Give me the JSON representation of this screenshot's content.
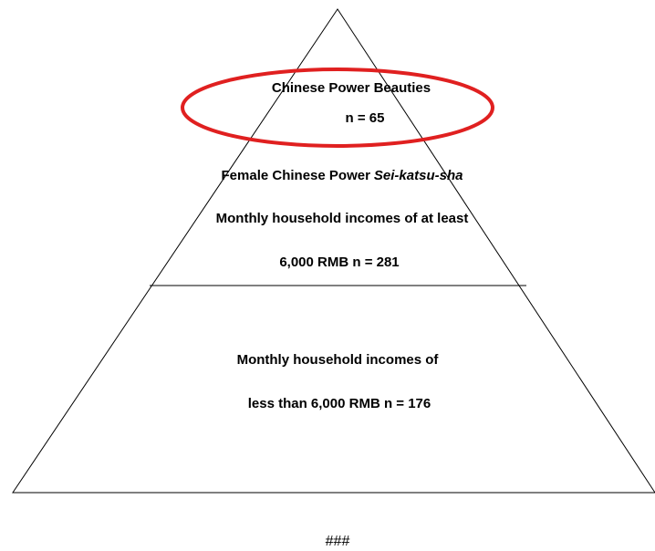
{
  "pyramid": {
    "top_tier": {
      "name": "Chinese Power Beauties",
      "count": "n = 65"
    },
    "middle_tier": {
      "title": {
        "plain": "Female Chinese Power",
        "italic": "Sei-katsu-sha"
      },
      "lines": [
        "Monthly household incomes of at least",
        "6,000 RMB n = 281"
      ]
    },
    "bottom_tier": {
      "lines": [
        "Monthly household incomes of",
        "less than 6,000 RMB n = 176"
      ]
    }
  },
  "footer": "###"
}
